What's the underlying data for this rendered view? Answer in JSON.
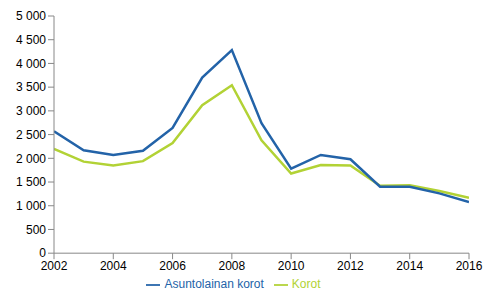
{
  "chart_data": {
    "type": "line",
    "x": [
      2002,
      2003,
      2004,
      2005,
      2006,
      2007,
      2008,
      2009,
      2010,
      2011,
      2012,
      2013,
      2014,
      2015,
      2016
    ],
    "series": [
      {
        "name": "Korot",
        "color": "#b2d235",
        "values": [
          2200,
          1930,
          1850,
          1940,
          2320,
          3120,
          3540,
          2380,
          1680,
          1860,
          1850,
          1420,
          1430,
          1310,
          1170
        ]
      },
      {
        "name": "Asuntolainan korot",
        "color": "#2363a8",
        "values": [
          2570,
          2170,
          2070,
          2160,
          2640,
          3700,
          4280,
          2740,
          1780,
          2070,
          1980,
          1400,
          1400,
          1260,
          1080
        ]
      }
    ],
    "xlim": [
      2002,
      2016
    ],
    "xticks": [
      2002,
      2004,
      2006,
      2008,
      2010,
      2012,
      2014,
      2016
    ],
    "ylim": [
      0,
      5000
    ],
    "yticks": [
      0,
      500,
      {
        "value": 1000,
        "label": "1 000"
      },
      {
        "value": 1500,
        "label": "1 500"
      },
      {
        "value": 2000,
        "label": "2 000"
      },
      {
        "value": 2500,
        "label": "2 500"
      },
      {
        "value": 3000,
        "label": "3 000"
      },
      {
        "value": 3500,
        "label": "3 500"
      },
      {
        "value": 4000,
        "label": "4 000"
      },
      {
        "value": 4500,
        "label": "4 500"
      },
      {
        "value": 5000,
        "label": "5 000"
      }
    ],
    "grid": false,
    "legend": "bottom"
  }
}
